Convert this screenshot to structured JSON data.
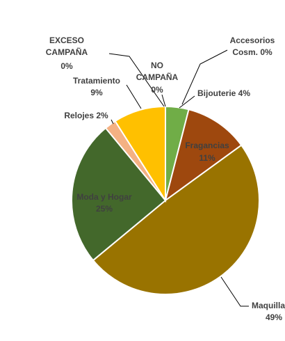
{
  "chart_data": {
    "type": "pie",
    "title": "",
    "start_category": "Accesorios Cosm.",
    "direction": "clockwise",
    "slices": [
      {
        "name": "Accesorios Cosm.",
        "value": 0,
        "label_name": [
          "Accesorios",
          "Cosm. 0%"
        ],
        "label_value": "",
        "color": "#FFC000"
      },
      {
        "name": "Bijouterie",
        "value": 4,
        "label_name": [
          "Bijouterie 4%"
        ],
        "label_value": "",
        "color": "#70AD47"
      },
      {
        "name": "Fragancias",
        "value": 11,
        "label_name": [
          "Fragancias"
        ],
        "label_value": "11%",
        "color": "#9E480E"
      },
      {
        "name": "Maquillaje",
        "value": 49,
        "label_name": [
          "Maquillaje"
        ],
        "label_value": "49%",
        "color": "#997300"
      },
      {
        "name": "Moda y Hogar",
        "value": 25,
        "label_name": [
          "Moda y Hogar"
        ],
        "label_value": "25%",
        "color": "#43682B"
      },
      {
        "name": "Relojes",
        "value": 2,
        "label_name": [
          "Relojes 2%"
        ],
        "label_value": "",
        "color": "#F4B183"
      },
      {
        "name": "Tratamiento",
        "value": 9,
        "label_name": [
          "Tratamiento"
        ],
        "label_value": "9%",
        "color": "#FFC000"
      },
      {
        "name": "EXCESO CAMPAÑA",
        "value": 0,
        "label_name": [
          "EXCESO",
          "CAMPAÑA"
        ],
        "label_value": "0%",
        "color": "#4472C4"
      },
      {
        "name": "NO CAMPAÑA",
        "value": 0,
        "label_name": [
          "NO",
          "CAMPAÑA"
        ],
        "label_value": "0%",
        "color": "#ED7D31"
      }
    ],
    "label_color_outside": "#404040",
    "label_color_inside": "#404040"
  }
}
